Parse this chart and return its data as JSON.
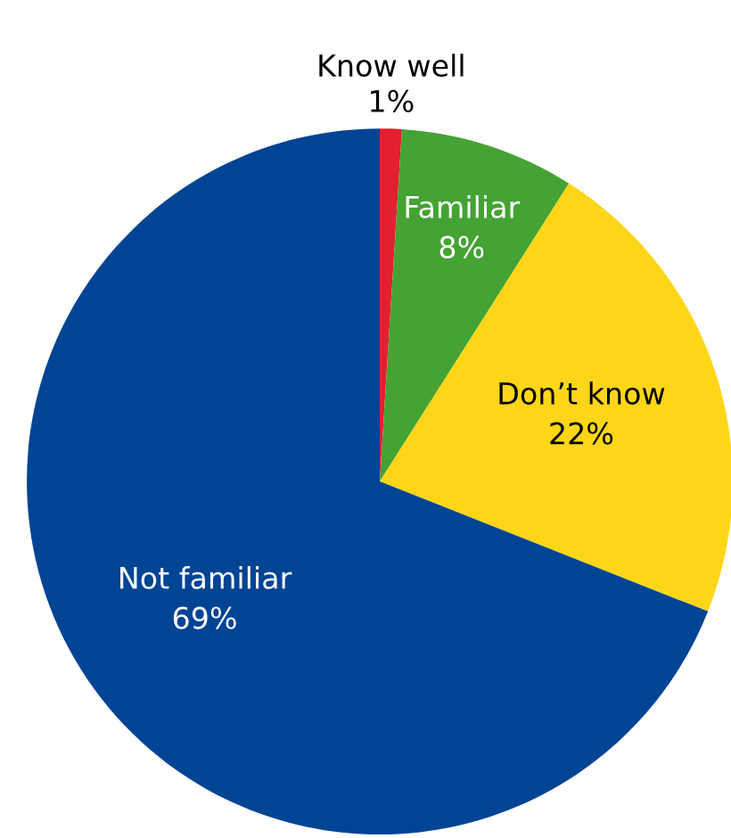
{
  "chart_data": {
    "type": "pie",
    "categories": [
      "Know well",
      "Familiar",
      "Don’t know",
      "Not familiar"
    ],
    "values": [
      1,
      8,
      22,
      69
    ],
    "colors": [
      "#e3202f",
      "#44a333",
      "#ffd617",
      "#004494"
    ],
    "value_labels": [
      "1%",
      "8%",
      "22%",
      "69%"
    ]
  }
}
